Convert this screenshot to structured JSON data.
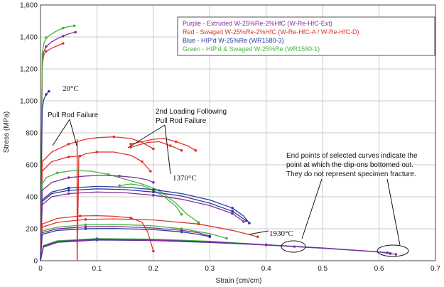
{
  "chart_data": {
    "type": "line",
    "xlabel": "Strain (cm/cm)",
    "ylabel": "Stress (MPa)",
    "xlim": [
      0,
      0.7
    ],
    "ylim": [
      0,
      1600
    ],
    "x_ticks": [
      "0",
      "0.1",
      "0.2",
      "0.3",
      "0.4",
      "0.5",
      "0.6",
      "0.7"
    ],
    "y_ticks": [
      "0",
      "200",
      "400",
      "600",
      "800",
      "1,000",
      "1,200",
      "1,400",
      "1,600"
    ],
    "grid": true,
    "legend_position": "top-right",
    "legend": [
      {
        "text": "Purple - Extruded W-25%Re-2%HfC  (W-Re-HfC-Ext)",
        "color": "#8a2d9c"
      },
      {
        "text": "Red - Swaged W-25%Re-2%HfC  (W-Re-HfC-A  / W-Re-HfC-D)",
        "color": "#e0342c"
      },
      {
        "text": "Blue - HIP'd W-25%Re  (WR1580-3)",
        "color": "#283c9c"
      },
      {
        "text": "Green - HIP'd & Swaged W-25%Re  (WR1580-1)",
        "color": "#46b43c"
      }
    ],
    "annotations": {
      "temp_20": "20°C",
      "temp_1370": "1370°C",
      "temp_1930": "1930°C",
      "pull_rod_failure": "Pull Rod Failure",
      "second_loading_line1": "2nd Loading Following",
      "second_loading_line2": "Pull Rod Failure",
      "end_note_line1": "End points of selected curves indicate the",
      "end_note_line2": "point at which the clip-ons bottomed out.",
      "end_note_line3": "They do not represent specimen fracture."
    },
    "series": [
      {
        "color": "#8a2d9c",
        "values": [
          [
            0,
            0
          ],
          [
            0.003,
            1200
          ],
          [
            0.005,
            1300
          ],
          [
            0.01,
            1340
          ],
          [
            0.02,
            1370
          ],
          [
            0.03,
            1390
          ],
          [
            0.04,
            1405
          ],
          [
            0.05,
            1420
          ],
          [
            0.062,
            1430
          ]
        ]
      },
      {
        "color": "#e0342c",
        "values": [
          [
            0,
            0
          ],
          [
            0.003,
            1230
          ],
          [
            0.006,
            1290
          ],
          [
            0.01,
            1310
          ],
          [
            0.02,
            1330
          ],
          [
            0.03,
            1345
          ],
          [
            0.04,
            1360
          ]
        ]
      },
      {
        "color": "#46b43c",
        "values": [
          [
            0,
            0
          ],
          [
            0.003,
            1300
          ],
          [
            0.006,
            1360
          ],
          [
            0.01,
            1395
          ],
          [
            0.02,
            1420
          ],
          [
            0.03,
            1440
          ],
          [
            0.04,
            1455
          ],
          [
            0.05,
            1465
          ],
          [
            0.06,
            1470
          ]
        ]
      },
      {
        "color": "#283c9c",
        "values": [
          [
            0,
            0
          ],
          [
            0.003,
            950
          ],
          [
            0.006,
            1010
          ],
          [
            0.01,
            1040
          ],
          [
            0.015,
            1060
          ]
        ]
      },
      {
        "color": "#e0342c",
        "values": [
          [
            0,
            0
          ],
          [
            0.003,
            620
          ],
          [
            0.02,
            680
          ],
          [
            0.05,
            730
          ],
          [
            0.08,
            760
          ],
          [
            0.1,
            770
          ],
          [
            0.13,
            775
          ],
          [
            0.16,
            765
          ],
          [
            0.18,
            740
          ],
          [
            0.2,
            700
          ]
        ]
      },
      {
        "color": "#e0342c",
        "values": [
          [
            0,
            0
          ],
          [
            0.003,
            560
          ],
          [
            0.02,
            620
          ],
          [
            0.05,
            650
          ],
          [
            0.07,
            655
          ]
        ]
      },
      {
        "color": "#e0342c",
        "values": [
          [
            0.065,
            0
          ],
          [
            0.068,
            650
          ],
          [
            0.08,
            670
          ],
          [
            0.1,
            680
          ],
          [
            0.13,
            680
          ],
          [
            0.16,
            660
          ],
          [
            0.18,
            620
          ],
          [
            0.195,
            560
          ]
        ]
      },
      {
        "color": "#e0342c",
        "values": [
          [
            0.16,
            730
          ],
          [
            0.2,
            760
          ],
          [
            0.22,
            765
          ],
          [
            0.24,
            745
          ],
          [
            0.26,
            720
          ],
          [
            0.275,
            690
          ]
        ]
      },
      {
        "color": "#e0342c",
        "values": [
          [
            0.16,
            710
          ],
          [
            0.19,
            740
          ],
          [
            0.21,
            745
          ],
          [
            0.23,
            720
          ],
          [
            0.25,
            690
          ]
        ]
      },
      {
        "color": "#46b43c",
        "values": [
          [
            0,
            0
          ],
          [
            0.003,
            480
          ],
          [
            0.01,
            520
          ],
          [
            0.03,
            550
          ],
          [
            0.06,
            565
          ],
          [
            0.09,
            560
          ],
          [
            0.12,
            540
          ],
          [
            0.15,
            510
          ],
          [
            0.18,
            480
          ],
          [
            0.21,
            440
          ],
          [
            0.24,
            360
          ],
          [
            0.26,
            290
          ],
          [
            0.28,
            240
          ]
        ]
      },
      {
        "color": "#46b43c",
        "values": [
          [
            0.14,
            470
          ],
          [
            0.16,
            480
          ],
          [
            0.18,
            470
          ],
          [
            0.2,
            440
          ],
          [
            0.22,
            400
          ],
          [
            0.24,
            340
          ],
          [
            0.25,
            290
          ]
        ]
      },
      {
        "color": "#8a2d9c",
        "values": [
          [
            0,
            0
          ],
          [
            0.003,
            440
          ],
          [
            0.02,
            490
          ],
          [
            0.05,
            520
          ],
          [
            0.08,
            530
          ],
          [
            0.11,
            535
          ],
          [
            0.14,
            530
          ],
          [
            0.17,
            520
          ],
          [
            0.19,
            505
          ],
          [
            0.2,
            490
          ]
        ]
      },
      {
        "color": "#283c9c",
        "values": [
          [
            0,
            0
          ],
          [
            0.003,
            380
          ],
          [
            0.02,
            430
          ],
          [
            0.05,
            455
          ],
          [
            0.1,
            465
          ],
          [
            0.15,
            460
          ],
          [
            0.2,
            445
          ],
          [
            0.25,
            420
          ],
          [
            0.3,
            380
          ],
          [
            0.34,
            330
          ],
          [
            0.36,
            280
          ],
          [
            0.37,
            235
          ]
        ]
      },
      {
        "color": "#283c9c",
        "values": [
          [
            0,
            0
          ],
          [
            0.003,
            370
          ],
          [
            0.02,
            420
          ],
          [
            0.05,
            440
          ],
          [
            0.1,
            450
          ],
          [
            0.15,
            445
          ],
          [
            0.2,
            430
          ],
          [
            0.25,
            405
          ],
          [
            0.3,
            360
          ],
          [
            0.34,
            310
          ],
          [
            0.365,
            250
          ]
        ]
      },
      {
        "color": "#8a2d9c",
        "values": [
          [
            0,
            0
          ],
          [
            0.003,
            350
          ],
          [
            0.02,
            400
          ],
          [
            0.05,
            420
          ],
          [
            0.1,
            430
          ],
          [
            0.15,
            425
          ],
          [
            0.2,
            410
          ],
          [
            0.25,
            385
          ],
          [
            0.3,
            345
          ],
          [
            0.34,
            295
          ],
          [
            0.36,
            245
          ]
        ]
      },
      {
        "color": "#e0342c",
        "values": [
          [
            0,
            0
          ],
          [
            0.003,
            230
          ],
          [
            0.03,
            265
          ],
          [
            0.07,
            280
          ],
          [
            0.1,
            282
          ],
          [
            0.13,
            278
          ],
          [
            0.16,
            268
          ],
          [
            0.18,
            240
          ],
          [
            0.19,
            180
          ],
          [
            0.2,
            60
          ]
        ]
      },
      {
        "color": "#e0342c",
        "values": [
          [
            0,
            0
          ],
          [
            0.003,
            210
          ],
          [
            0.03,
            240
          ],
          [
            0.08,
            258
          ],
          [
            0.13,
            262
          ],
          [
            0.2,
            255
          ],
          [
            0.28,
            230
          ],
          [
            0.34,
            190
          ],
          [
            0.385,
            150
          ]
        ]
      },
      {
        "color": "#46b43c",
        "values": [
          [
            0,
            0
          ],
          [
            0.003,
            185
          ],
          [
            0.03,
            210
          ],
          [
            0.08,
            225
          ],
          [
            0.13,
            228
          ],
          [
            0.2,
            218
          ],
          [
            0.25,
            200
          ],
          [
            0.3,
            170
          ],
          [
            0.33,
            140
          ]
        ]
      },
      {
        "color": "#8a2d9c",
        "values": [
          [
            0,
            0
          ],
          [
            0.003,
            175
          ],
          [
            0.03,
            200
          ],
          [
            0.08,
            212
          ],
          [
            0.13,
            215
          ],
          [
            0.2,
            205
          ],
          [
            0.25,
            190
          ],
          [
            0.28,
            175
          ],
          [
            0.3,
            155
          ]
        ]
      },
      {
        "color": "#283c9c",
        "values": [
          [
            0,
            0
          ],
          [
            0.003,
            165
          ],
          [
            0.03,
            190
          ],
          [
            0.08,
            200
          ],
          [
            0.13,
            202
          ],
          [
            0.2,
            195
          ],
          [
            0.25,
            180
          ],
          [
            0.28,
            165
          ],
          [
            0.3,
            150
          ]
        ]
      },
      {
        "color": "#46b43c",
        "values": [
          [
            0,
            0
          ],
          [
            0.005,
            95
          ],
          [
            0.03,
            125
          ],
          [
            0.1,
            138
          ],
          [
            0.2,
            135
          ],
          [
            0.3,
            122
          ],
          [
            0.4,
            100
          ],
          [
            0.45,
            88
          ]
        ]
      },
      {
        "color": "#283c9c",
        "values": [
          [
            0,
            0
          ],
          [
            0.005,
            90
          ],
          [
            0.03,
            120
          ],
          [
            0.1,
            135
          ],
          [
            0.2,
            130
          ],
          [
            0.3,
            118
          ],
          [
            0.4,
            100
          ],
          [
            0.5,
            80
          ],
          [
            0.6,
            55
          ],
          [
            0.62,
            45
          ]
        ]
      },
      {
        "color": "#283c9c",
        "values": [
          [
            0,
            0
          ],
          [
            0.005,
            85
          ],
          [
            0.03,
            115
          ],
          [
            0.1,
            130
          ],
          [
            0.2,
            126
          ],
          [
            0.3,
            114
          ],
          [
            0.4,
            98
          ],
          [
            0.5,
            78
          ],
          [
            0.58,
            60
          ],
          [
            0.615,
            50
          ]
        ]
      },
      {
        "color": "#8a2d9c",
        "values": [
          [
            0,
            0
          ],
          [
            0.005,
            85
          ],
          [
            0.03,
            118
          ],
          [
            0.1,
            132
          ],
          [
            0.2,
            128
          ],
          [
            0.3,
            116
          ],
          [
            0.4,
            98
          ],
          [
            0.5,
            78
          ],
          [
            0.6,
            55
          ],
          [
            0.63,
            40
          ]
        ]
      }
    ],
    "vertical_line": {
      "x": 0.065,
      "color": "#e0342c"
    }
  }
}
